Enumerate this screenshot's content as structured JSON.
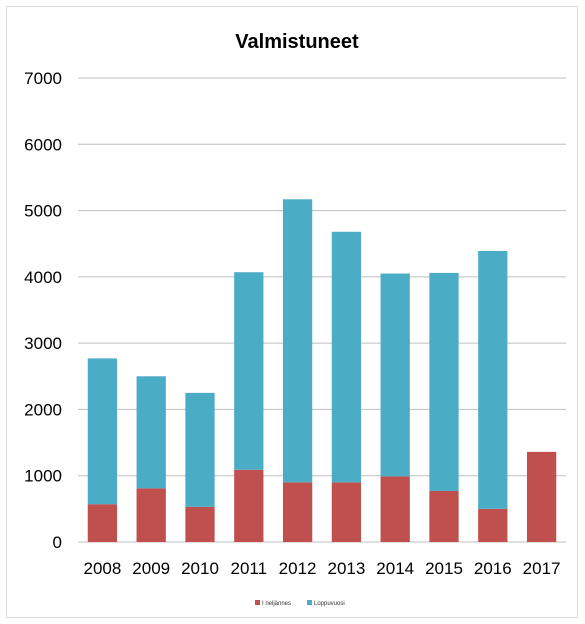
{
  "chart_data": {
    "type": "bar",
    "stacked": true,
    "title": "Valmistuneet",
    "xlabel": "",
    "ylabel": "",
    "categories": [
      "2008",
      "2009",
      "2010",
      "2011",
      "2012",
      "2013",
      "2014",
      "2015",
      "2016",
      "2017"
    ],
    "series": [
      {
        "name": "I neljännes",
        "color": "#c0504d",
        "values": [
          570,
          810,
          530,
          1090,
          900,
          900,
          990,
          770,
          500,
          1360
        ]
      },
      {
        "name": "Loppuvuosi",
        "color": "#4bacc6",
        "values": [
          2200,
          1690,
          1720,
          2980,
          4270,
          3780,
          3060,
          3290,
          3890,
          0
        ]
      }
    ],
    "ylim": [
      0,
      7000
    ],
    "yticks": [
      0,
      1000,
      2000,
      3000,
      4000,
      5000,
      6000,
      7000
    ],
    "grid": true,
    "legend_position": "bottom"
  }
}
